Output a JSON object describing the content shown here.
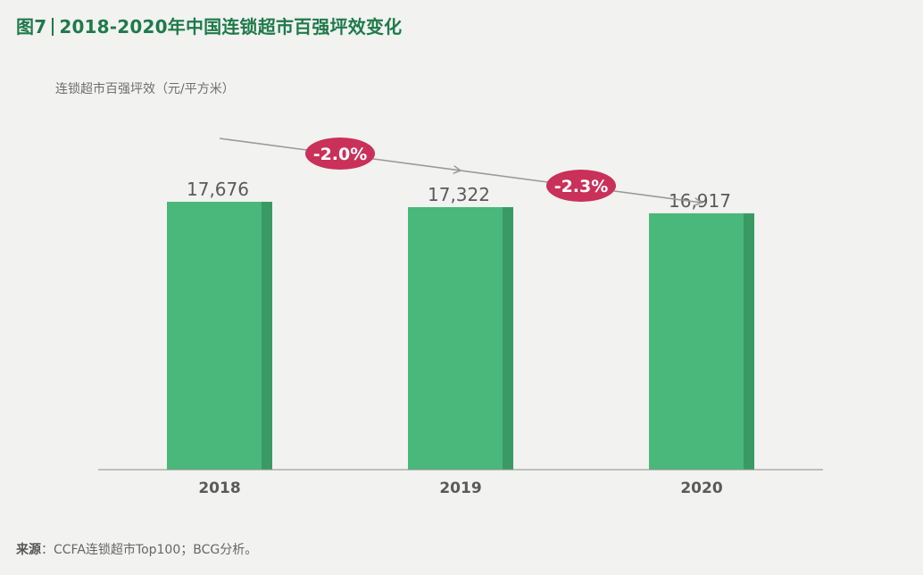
{
  "title": {
    "figure_no": "图7",
    "text": "2018-2020年中国连锁超市百强坪效变化"
  },
  "colors": {
    "title": "#1e7a4a",
    "bar_front": "#4ab77b",
    "bar_side": "#3a9a63",
    "badge": "#c9305a",
    "trend_line": "#999999",
    "axis": "#8c8c8c"
  },
  "chart_data": {
    "type": "bar",
    "ylabel": "连锁超市百强坪效（元/平方米）",
    "categories": [
      "2018",
      "2019",
      "2020"
    ],
    "values": [
      17676,
      17322,
      16917
    ],
    "value_labels": [
      "17,676",
      "17,322",
      "16,917"
    ],
    "annotations": [
      {
        "from": "2018",
        "to": "2019",
        "text": "-2.0%"
      },
      {
        "from": "2019",
        "to": "2020",
        "text": "-2.3%"
      }
    ],
    "grid": false
  },
  "source": {
    "label": "来源",
    "text": "CCFA连锁超市Top100；BCG分析。"
  }
}
